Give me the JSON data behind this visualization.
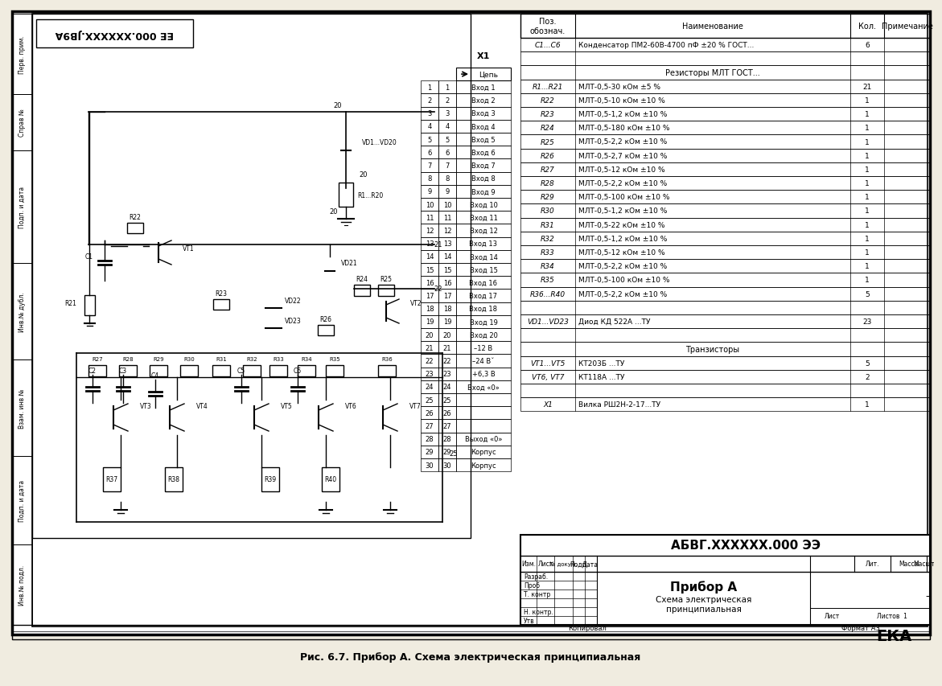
{
  "title": "Рис. 6.7. Прибор А. Схема электрическая принципиальная",
  "bg_color": "#f0ece0",
  "schematic_bg": "#ffffff",
  "table_rows": [
    [
      "C1...C6",
      "Конденсатор ПМ2-60В-4700 пФ ±20 % ГОСТ...",
      "6",
      ""
    ],
    [
      "",
      "",
      "",
      ""
    ],
    [
      "",
      "Резисторы МЛТ ГОСТ...",
      "",
      ""
    ],
    [
      "R1...R21",
      "МЛТ-0,5-30 кОм ±5 %",
      "21",
      ""
    ],
    [
      "R22",
      "МЛТ-0,5-10 кОм ±10 %",
      "1",
      ""
    ],
    [
      "R23",
      "МЛТ-0,5-1,2 кОм ±10 %",
      "1",
      ""
    ],
    [
      "R24",
      "МЛТ-0,5-180 кОм ±10 %",
      "1",
      ""
    ],
    [
      "R25",
      "МЛТ-0,5-2,2 кОм ±10 %",
      "1",
      ""
    ],
    [
      "R26",
      "МЛТ-0,5-2,7 кОм ±10 %",
      "1",
      ""
    ],
    [
      "R27",
      "МЛТ-0,5-12 кОм ±10 %",
      "1",
      ""
    ],
    [
      "R28",
      "МЛТ-0,5-2,2 кОм ±10 %",
      "1",
      ""
    ],
    [
      "R29",
      "МЛТ-0,5-100 кОм ±10 %",
      "1",
      ""
    ],
    [
      "R30",
      "МЛТ-0,5-1,2 кОм ±10 %",
      "1",
      ""
    ],
    [
      "R31",
      "МЛТ-0,5-22 кОм ±10 %",
      "1",
      ""
    ],
    [
      "R32",
      "МЛТ-0,5-1,2 кОм ±10 %",
      "1",
      ""
    ],
    [
      "R33",
      "МЛТ-0,5-12 кОм ±10 %",
      "1",
      ""
    ],
    [
      "R34",
      "МЛТ-0,5-2,2 кОм ±10 %",
      "1",
      ""
    ],
    [
      "R35",
      "МЛТ-0,5-100 кОм ±10 %",
      "1",
      ""
    ],
    [
      "R36...R40",
      "МЛТ-0,5-2,2 кОм ±10 %",
      "5",
      ""
    ],
    [
      "",
      "",
      "",
      ""
    ],
    [
      "VD1...VD23",
      "Диод КД 522А ...ТУ",
      "23",
      ""
    ],
    [
      "",
      "",
      "",
      ""
    ],
    [
      "",
      "Транзисторы",
      "",
      ""
    ],
    [
      "VT1...VT5",
      "КТ203Б ...ТУ",
      "5",
      ""
    ],
    [
      "VT6, VT7",
      "КТ118А ...ТУ",
      "2",
      ""
    ],
    [
      "",
      "",
      "",
      ""
    ],
    [
      "X1",
      "Вилка РШ2Н-2-17...ТУ",
      "1",
      ""
    ]
  ],
  "stamp_code": "АБВГ.XXXXXX.000 ЭЭ",
  "device_name": "Прибор А",
  "schema_name": "Схема электрическая\nпринципиальная",
  "company": "ЕКА",
  "sheet_info": "Листов  1",
  "format_info": "Формат А3",
  "schematic_title": "ЕЕ 000.XXXXXX.JB9A",
  "connector_pins": [
    "Вход 1",
    "Вход 2",
    "Вход 3",
    "Вход 4",
    "Вход 5",
    "Вход 6",
    "Вход 7",
    "Вход 8",
    "Вход 9",
    "Вход 10",
    "Вход 11",
    "Вход 12",
    "Вход 13",
    "Вход 14",
    "Вход 15",
    "Вход 16",
    "Вход 17",
    "Вход 18",
    "Вход 19",
    "Вход 20",
    "–12 В",
    "–24 Вˇ",
    "+6,3 В",
    "Вход «0»",
    "",
    "",
    "",
    "Выход «0»",
    "Корпус",
    "Корпус"
  ]
}
